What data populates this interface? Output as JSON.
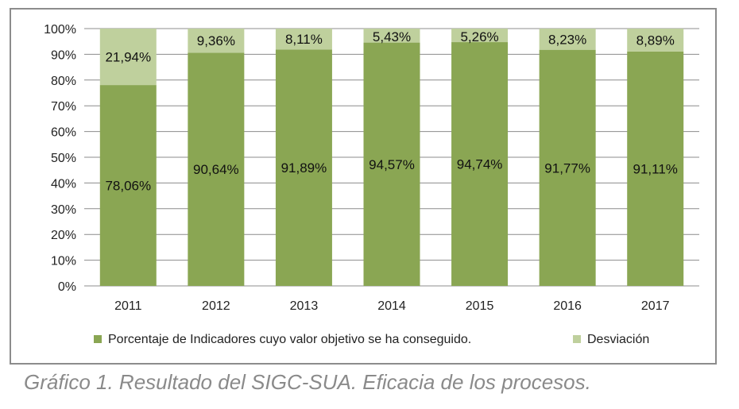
{
  "colors": {
    "primary": "#8aa653",
    "secondary": "#bfd09d",
    "grid": "#8c8c8c"
  },
  "caption": "Gráfico 1. Resultado del SIGC-SUA. Eficacia de los procesos.",
  "chart_data": {
    "type": "bar",
    "stacked": true,
    "categories": [
      "2011",
      "2012",
      "2013",
      "2014",
      "2015",
      "2016",
      "2017"
    ],
    "series": [
      {
        "name": "Porcentaje de Indicadores cuyo valor objetivo se ha conseguido.",
        "values": [
          78.06,
          90.64,
          91.89,
          94.57,
          94.74,
          91.77,
          91.11
        ],
        "labels": [
          "78,06%",
          "90,64%",
          "91,89%",
          "94,57%",
          "94,74%",
          "91,77%",
          "91,11%"
        ]
      },
      {
        "name": "Desviación",
        "values": [
          21.94,
          9.36,
          8.11,
          5.43,
          5.26,
          8.23,
          8.89
        ],
        "labels": [
          "21,94%",
          "9,36%",
          "8,11%",
          "5,43%",
          "5,26%",
          "8,23%",
          "8,89%"
        ]
      }
    ],
    "y_ticks": [
      "0%",
      "10%",
      "20%",
      "30%",
      "40%",
      "50%",
      "60%",
      "70%",
      "80%",
      "90%",
      "100%"
    ],
    "ylim": [
      0,
      100
    ],
    "grid": true,
    "legend_position": "bottom"
  }
}
